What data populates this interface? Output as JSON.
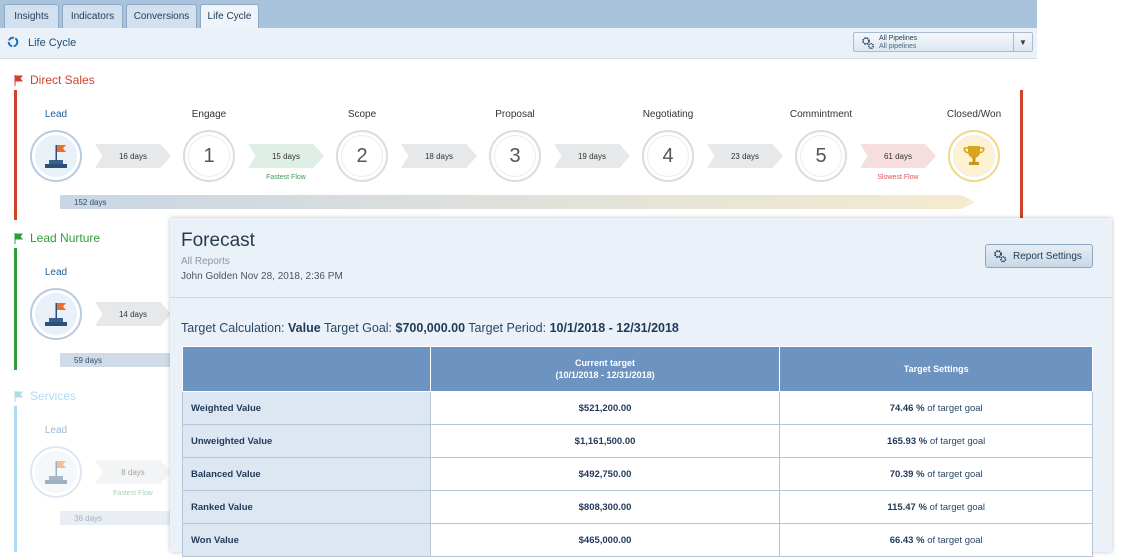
{
  "tabs": [
    {
      "label": "Insights",
      "active": false
    },
    {
      "label": "Indicators",
      "active": false
    },
    {
      "label": "Conversions",
      "active": false
    },
    {
      "label": "Life Cycle",
      "active": true
    }
  ],
  "toolbar": {
    "title": "Life Cycle",
    "pipeline_select_label": "All Pipelines",
    "pipeline_select_value": "All pipelines"
  },
  "direct_sales": {
    "name": "Direct Sales",
    "color": "#d0432b",
    "stages": [
      "Lead",
      "Engage",
      "Scope",
      "Proposal",
      "Negotiating",
      "Commintment",
      "Closed/Won"
    ],
    "stage_numbers": [
      "1",
      "2",
      "3",
      "4",
      "5"
    ],
    "durations": [
      "16 days",
      "15 days",
      "18 days",
      "19 days",
      "23 days",
      "61 days"
    ],
    "fastest_flow": "Fastest Flow",
    "slowest_flow": "Slowest Flow",
    "total": "152 days"
  },
  "lead_nurture": {
    "name": "Lead Nurture",
    "color": "#2e9e3a",
    "stage": "Lead",
    "duration": "14 days",
    "total": "59 days"
  },
  "services": {
    "name": "Services",
    "color": "#4fb0e0",
    "stage": "Lead",
    "duration": "8 days",
    "fastest_flow": "Fastest Flow",
    "total": "36 days"
  },
  "forecast": {
    "title": "Forecast",
    "subtitle": "All Reports",
    "user_line": "John Golden Nov 28, 2018, 2:36 PM",
    "report_settings_label": "Report Settings",
    "target_calc_label": "Target Calculation:",
    "target_calc_value": "Value",
    "target_goal_label": "Target Goal:",
    "target_goal_value": "$700,000.00",
    "target_period_label": "Target Period:",
    "target_period_value": "10/1/2018 - 12/31/2018",
    "table": {
      "headers": [
        "",
        "Current target\n(10/1/2018 - 12/31/2018)",
        "Target Settings"
      ],
      "rows": [
        {
          "label": "Weighted Value",
          "current": "$521,200.00",
          "pct": "74.46 %",
          "suffix": " of target goal"
        },
        {
          "label": "Unweighted Value",
          "current": "$1,161,500.00",
          "pct": "165.93 %",
          "suffix": " of target goal"
        },
        {
          "label": "Balanced Value",
          "current": "$492,750.00",
          "pct": "70.39 %",
          "suffix": " of target goal"
        },
        {
          "label": "Ranked Value",
          "current": "$808,300.00",
          "pct": "115.47 %",
          "suffix": " of target goal"
        },
        {
          "label": "Won Value",
          "current": "$465,000.00",
          "pct": "66.43 %",
          "suffix": " of target goal"
        }
      ]
    }
  }
}
